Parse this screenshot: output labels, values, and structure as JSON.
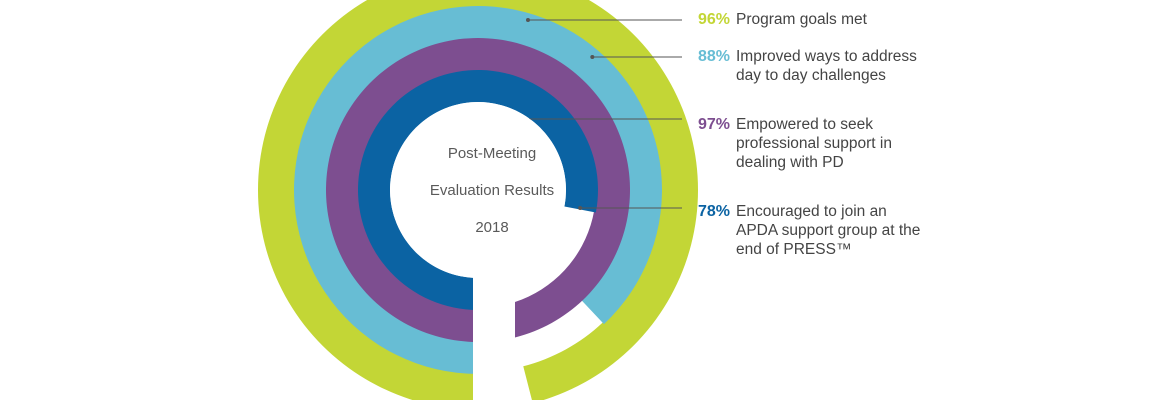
{
  "chart_data": {
    "type": "radial-bar",
    "title": "Post-Meeting Evaluation Results 2018",
    "title_lines": [
      "Post-Meeting",
      "Evaluation Results",
      "2018"
    ],
    "series": [
      {
        "name": "Program goals met",
        "value": 96,
        "percent_label": "96%",
        "color": "#c3d636"
      },
      {
        "name": "Improved ways to address day to day challenges",
        "value": 88,
        "percent_label": "88%",
        "color": "#67bdd4"
      },
      {
        "name": "Empowered to seek professional support in dealing with PD",
        "value": 97,
        "percent_label": "97%",
        "color": "#7d4e90"
      },
      {
        "name": "Encouraged to join an APDA support group at the end of PRESS™",
        "value": 78,
        "percent_label": "78%",
        "color": "#0b63a3"
      }
    ]
  }
}
